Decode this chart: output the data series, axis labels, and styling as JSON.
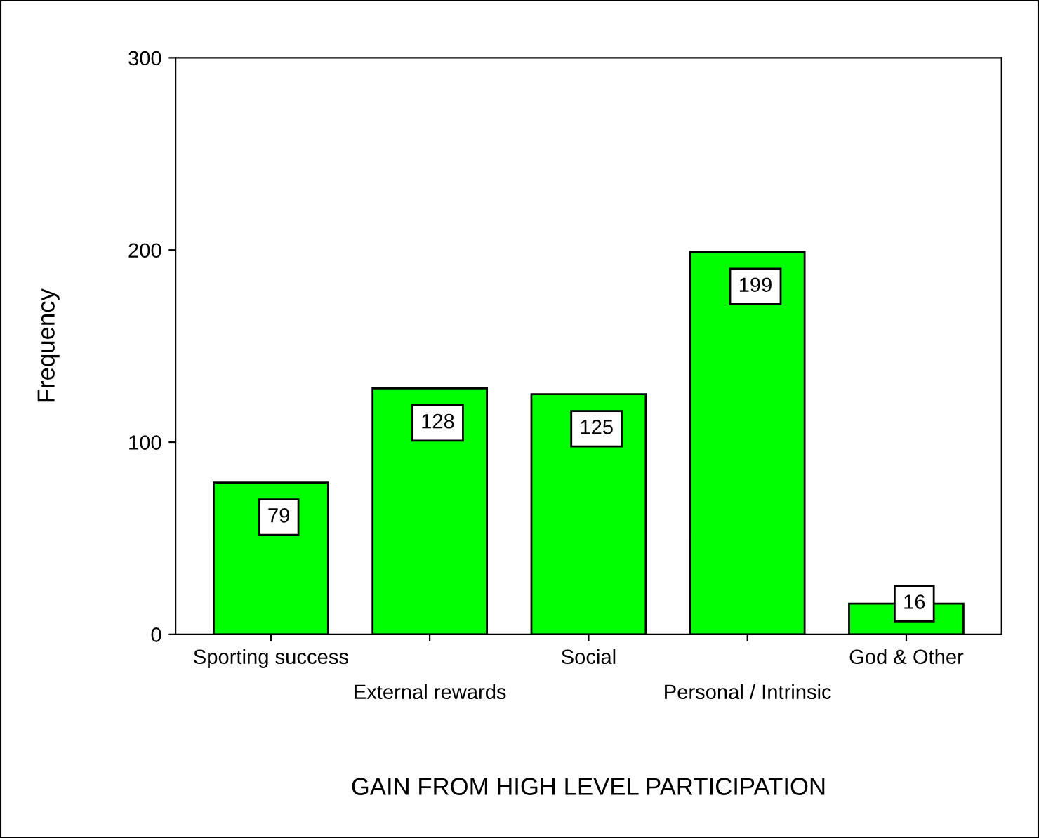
{
  "chart_data": {
    "type": "bar",
    "xlabel": "GAIN FROM HIGH LEVEL PARTICIPATION",
    "ylabel": "Frequency",
    "categories": [
      "Sporting success",
      "External rewards",
      "Social",
      "Personal / Intrinsic",
      "God & Other"
    ],
    "values": [
      79,
      128,
      125,
      199,
      16
    ],
    "color": "#00ff00",
    "ylim": [
      0,
      300
    ],
    "yticks": [
      0,
      100,
      200,
      300
    ],
    "grid": false,
    "data_labels": true
  }
}
